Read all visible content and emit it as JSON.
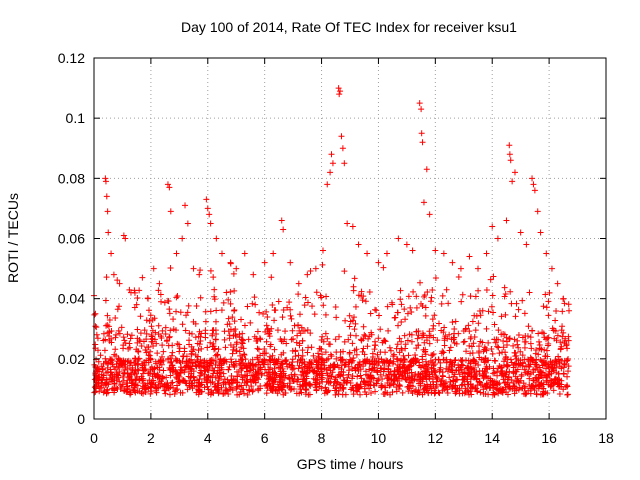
{
  "chart_data": {
    "type": "scatter",
    "title": "Day 100 of 2014, Rate Of TEC Index for receiver ksu1",
    "xlabel": "GPS time / hours",
    "ylabel": "ROTI / TECUs",
    "xlim": [
      0,
      18
    ],
    "ylim": [
      0,
      0.12
    ],
    "xticks": [
      0,
      2,
      4,
      6,
      8,
      10,
      12,
      14,
      16,
      18
    ],
    "xtick_labels": [
      "0",
      "2",
      "4",
      "6",
      "8",
      "10",
      "12",
      "14",
      "16",
      "18"
    ],
    "yticks": [
      0,
      0.02,
      0.04,
      0.06,
      0.08,
      0.1,
      0.12
    ],
    "ytick_labels": [
      "0",
      "0.02",
      "0.04",
      "0.06",
      "0.08",
      "0.1",
      "0.12"
    ],
    "grid": true,
    "marker": "+",
    "color": "#ff0000",
    "x_range_data": [
      0,
      16.7
    ],
    "series": [
      {
        "name": "ROTI",
        "description_points": "dense band of samples mostly between 0.005 and 0.03 TECU/min across 0-16.7 h, with spikes",
        "points": [
          [
            0.0,
            0.041
          ],
          [
            0.05,
            0.035
          ],
          [
            0.1,
            0.028
          ],
          [
            0.4,
            0.08
          ],
          [
            0.42,
            0.079
          ],
          [
            0.45,
            0.074
          ],
          [
            0.48,
            0.069
          ],
          [
            0.5,
            0.062
          ],
          [
            0.6,
            0.055
          ],
          [
            0.7,
            0.048
          ],
          [
            0.9,
            0.045
          ],
          [
            1.05,
            0.061
          ],
          [
            1.1,
            0.06
          ],
          [
            1.3,
            0.042
          ],
          [
            1.5,
            0.038
          ],
          [
            1.7,
            0.047
          ],
          [
            1.9,
            0.04
          ],
          [
            2.1,
            0.05
          ],
          [
            2.3,
            0.045
          ],
          [
            2.6,
            0.078
          ],
          [
            2.65,
            0.077
          ],
          [
            2.7,
            0.069
          ],
          [
            2.9,
            0.055
          ],
          [
            3.1,
            0.06
          ],
          [
            3.2,
            0.071
          ],
          [
            3.3,
            0.065
          ],
          [
            3.5,
            0.05
          ],
          [
            3.7,
            0.048
          ],
          [
            3.95,
            0.073
          ],
          [
            4.0,
            0.07
          ],
          [
            4.05,
            0.068
          ],
          [
            4.1,
            0.065
          ],
          [
            4.3,
            0.06
          ],
          [
            4.5,
            0.055
          ],
          [
            4.8,
            0.052
          ],
          [
            5.0,
            0.05
          ],
          [
            5.3,
            0.055
          ],
          [
            5.6,
            0.048
          ],
          [
            6.0,
            0.052
          ],
          [
            6.3,
            0.055
          ],
          [
            6.6,
            0.066
          ],
          [
            6.65,
            0.063
          ],
          [
            6.9,
            0.052
          ],
          [
            7.2,
            0.045
          ],
          [
            7.5,
            0.048
          ],
          [
            7.8,
            0.05
          ],
          [
            8.05,
            0.056
          ],
          [
            8.2,
            0.078
          ],
          [
            8.3,
            0.082
          ],
          [
            8.35,
            0.088
          ],
          [
            8.4,
            0.085
          ],
          [
            8.6,
            0.11
          ],
          [
            8.62,
            0.108
          ],
          [
            8.65,
            0.109
          ],
          [
            8.7,
            0.094
          ],
          [
            8.75,
            0.09
          ],
          [
            8.8,
            0.085
          ],
          [
            8.9,
            0.065
          ],
          [
            9.1,
            0.064
          ],
          [
            9.3,
            0.058
          ],
          [
            9.6,
            0.055
          ],
          [
            10.0,
            0.052
          ],
          [
            10.3,
            0.055
          ],
          [
            10.7,
            0.06
          ],
          [
            11.0,
            0.058
          ],
          [
            11.2,
            0.056
          ],
          [
            11.45,
            0.105
          ],
          [
            11.5,
            0.103
          ],
          [
            11.52,
            0.095
          ],
          [
            11.55,
            0.092
          ],
          [
            11.6,
            0.072
          ],
          [
            11.7,
            0.083
          ],
          [
            11.8,
            0.068
          ],
          [
            12.0,
            0.056
          ],
          [
            12.3,
            0.055
          ],
          [
            12.6,
            0.052
          ],
          [
            12.9,
            0.05
          ],
          [
            13.2,
            0.054
          ],
          [
            13.5,
            0.05
          ],
          [
            13.8,
            0.055
          ],
          [
            14.0,
            0.064
          ],
          [
            14.2,
            0.06
          ],
          [
            14.5,
            0.066
          ],
          [
            14.6,
            0.091
          ],
          [
            14.62,
            0.088
          ],
          [
            14.65,
            0.086
          ],
          [
            14.7,
            0.079
          ],
          [
            14.8,
            0.082
          ],
          [
            15.0,
            0.062
          ],
          [
            15.2,
            0.058
          ],
          [
            15.4,
            0.08
          ],
          [
            15.45,
            0.078
          ],
          [
            15.5,
            0.076
          ],
          [
            15.6,
            0.069
          ],
          [
            15.7,
            0.062
          ],
          [
            15.9,
            0.055
          ],
          [
            16.1,
            0.05
          ],
          [
            16.3,
            0.045
          ],
          [
            16.5,
            0.04
          ],
          [
            16.7,
            0.036
          ]
        ]
      }
    ]
  }
}
